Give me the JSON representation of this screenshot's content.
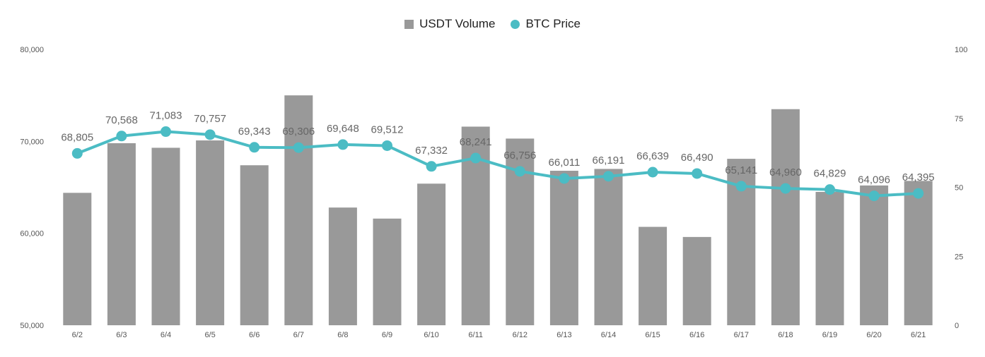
{
  "chart_data": {
    "type": "bar",
    "categories": [
      "6/2",
      "6/3",
      "6/4",
      "6/5",
      "6/6",
      "6/7",
      "6/8",
      "6/9",
      "6/10",
      "6/11",
      "6/12",
      "6/13",
      "6/14",
      "6/15",
      "6/16",
      "6/17",
      "6/18",
      "6/19",
      "6/20",
      "6/21"
    ],
    "series": [
      {
        "name": "USDT Volume",
        "type": "bar",
        "axis": "left",
        "color": "#999999",
        "values": [
          64400,
          69800,
          69300,
          70100,
          67400,
          75000,
          62800,
          61600,
          65400,
          71600,
          70300,
          66800,
          67000,
          60700,
          59600,
          68100,
          73500,
          64500,
          65200,
          65700
        ]
      },
      {
        "name": "BTC Price",
        "type": "line",
        "axis": "right",
        "color": "#4BBCC4",
        "values": [
          62.3,
          68.6,
          70.2,
          69.1,
          64.5,
          64.4,
          65.5,
          65.1,
          57.6,
          60.6,
          55.8,
          53.2,
          54.0,
          55.5,
          55.0,
          50.4,
          49.6,
          49.2,
          46.9,
          47.8
        ],
        "labels": [
          "68,805",
          "70,568",
          "71,083",
          "70,757",
          "69,343",
          "69,306",
          "69,648",
          "69,512",
          "67,332",
          "68,241",
          "66,756",
          "66,011",
          "66,191",
          "66,639",
          "66,490",
          "65,141",
          "64,960",
          "64,829",
          "64,096",
          "64,395"
        ]
      }
    ],
    "y_left": {
      "min": 50000,
      "max": 80000,
      "ticks": [
        "50,000",
        "60,000",
        "70,000",
        "80,000"
      ],
      "tick_values": [
        50000,
        60000,
        70000,
        80000
      ]
    },
    "y_right": {
      "min": 0,
      "max": 100,
      "ticks": [
        "0",
        "25",
        "50",
        "75",
        "100"
      ],
      "tick_values": [
        0,
        25,
        50,
        75,
        100
      ]
    },
    "title": "",
    "xlabel": "",
    "ylabel": "",
    "grid": false,
    "legend_position": "top-center"
  },
  "legend": {
    "bar_label": "USDT Volume",
    "line_label": "BTC Price",
    "bar_color": "#999999",
    "line_color": "#4BBCC4"
  }
}
